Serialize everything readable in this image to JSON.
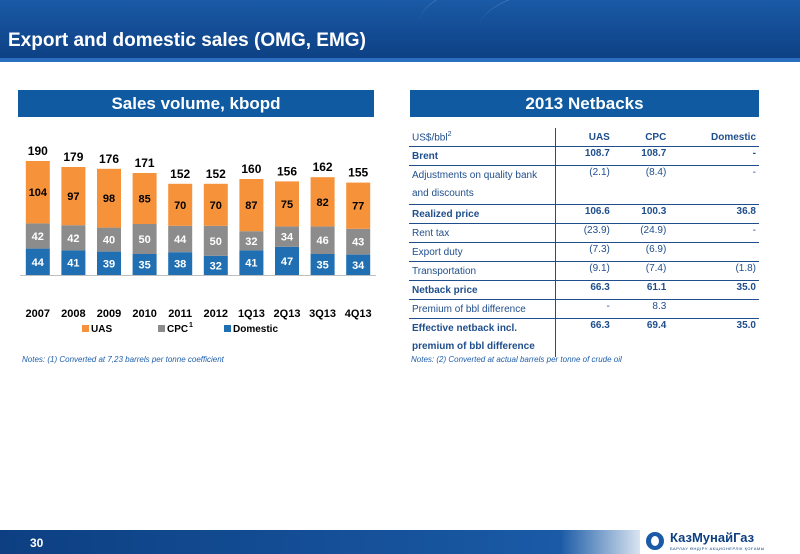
{
  "slide": {
    "title": "Export and domestic sales (OMG, EMG)",
    "page_number": "30"
  },
  "left_panel": {
    "title": "Sales volume, kbopd",
    "note": "Notes: (1) Converted at 7,23 barrels per tonne coefficient"
  },
  "right_panel": {
    "title": "2013 Netbacks",
    "note": "Notes: (2) Converted at actual barrels per tonne of crude oil"
  },
  "chart_data": {
    "type": "bar",
    "stacked": true,
    "categories": [
      "2007",
      "2008",
      "2009",
      "2010",
      "2011",
      "2012",
      "1Q13",
      "2Q13",
      "3Q13",
      "4Q13"
    ],
    "series": [
      {
        "name": "Domestic",
        "color": "#1f6fb2",
        "values": [
          44,
          41,
          39,
          35,
          38,
          32,
          41,
          47,
          35,
          34
        ]
      },
      {
        "name": "CPC",
        "name_superscript": "1",
        "color": "#8c8c8c",
        "values": [
          42,
          42,
          40,
          50,
          44,
          50,
          32,
          34,
          46,
          43
        ]
      },
      {
        "name": "UAS",
        "color": "#f6923a",
        "values": [
          104,
          97,
          98,
          85,
          70,
          70,
          87,
          75,
          82,
          77
        ]
      }
    ],
    "totals": [
      190,
      179,
      176,
      171,
      152,
      152,
      160,
      156,
      162,
      155
    ],
    "legend_order": [
      "UAS",
      "CPC",
      "Domestic"
    ],
    "legend_position": "bottom",
    "ylim": [
      0,
      200
    ],
    "grid": false
  },
  "table": {
    "header": {
      "unit": "US$/bbl",
      "unit_superscript": "2",
      "cols": [
        "UAS",
        "CPC",
        "Domestic"
      ]
    },
    "rows": [
      {
        "label": "Brent",
        "values": [
          "108.7",
          "108.7",
          "-"
        ],
        "bold": true,
        "line": true
      },
      {
        "label": "Adjustments on quality bank and discounts",
        "values": [
          "(2.1)",
          "(8.4)",
          "-"
        ],
        "bold": false,
        "line": true,
        "tall": true
      },
      {
        "label": "Realized price",
        "values": [
          "106.6",
          "100.3",
          "36.8"
        ],
        "bold": true,
        "line": true
      },
      {
        "label": "Rent tax",
        "values": [
          "(23.9)",
          "(24.9)",
          "-"
        ],
        "bold": false,
        "line": true
      },
      {
        "label": "Export duty",
        "values": [
          "(7.3)",
          "(6.9)",
          ""
        ],
        "bold": false,
        "line": true
      },
      {
        "label": "Transportation",
        "values": [
          "(9.1)",
          "(7.4)",
          "(1.8)"
        ],
        "bold": false,
        "line": true
      },
      {
        "label": "Netback price",
        "values": [
          "66.3",
          "61.1",
          "35.0"
        ],
        "bold": true,
        "line": true
      },
      {
        "label": "Premium of bbl difference",
        "values": [
          "-",
          "8.3",
          ""
        ],
        "bold": false,
        "line": true
      },
      {
        "label": "Effective netback incl. premium of bbl difference",
        "values": [
          "66.3",
          "69.4",
          "35.0"
        ],
        "bold": true,
        "line": false,
        "tall": true
      }
    ]
  },
  "logo": {
    "name": "КазМунайГаз",
    "sub": "БАРЛАУ ӨНДІРУ АКЦИОНЕРЛІК ҚОҒАМЫ"
  }
}
